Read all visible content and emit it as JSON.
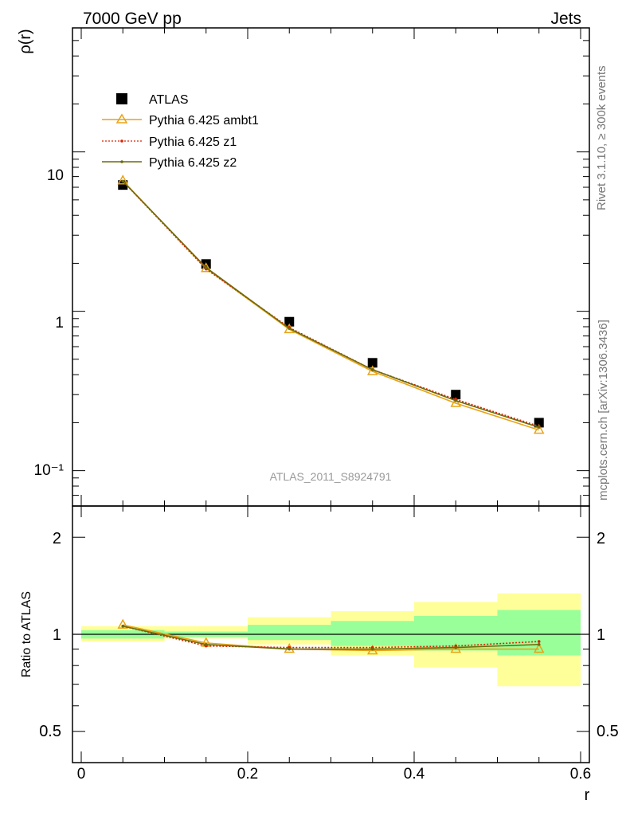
{
  "header": {
    "left_title": "7000 GeV pp",
    "right_title": "Jets"
  },
  "side_labels": {
    "rivet": "Rivet 3.1.10, ≥ 300k events",
    "source": "mcplots.cern.ch [arXiv:1306.3436]"
  },
  "watermark": "ATLAS_2011_S8924791",
  "chart_data": [
    {
      "type": "line",
      "panel": "main",
      "ylabel": "ρ(r)",
      "xlabel": "",
      "yscale": "log",
      "ylim": [
        0.06,
        60
      ],
      "xlim": [
        -0.012,
        0.6
      ],
      "ytick_labels": [
        "10⁻¹",
        "1",
        "10"
      ],
      "legend_position": "top-left",
      "x": [
        0.05,
        0.15,
        0.25,
        0.35,
        0.45,
        0.55
      ],
      "series": [
        {
          "name": "ATLAS",
          "color": "#000000",
          "marker": "square",
          "values": [
            6.2,
            1.98,
            0.86,
            0.475,
            0.3,
            0.2
          ]
        },
        {
          "name": "Pythia 6.425 ambt1",
          "color": "#e8a317",
          "marker": "triangle",
          "style": "solid",
          "values": [
            6.6,
            1.86,
            0.77,
            0.42,
            0.265,
            0.18
          ]
        },
        {
          "name": "Pythia 6.425 z1",
          "color": "#dd2200",
          "marker": "dot",
          "style": "dotted",
          "values": [
            6.55,
            1.84,
            0.79,
            0.43,
            0.28,
            0.19
          ]
        },
        {
          "name": "Pythia 6.425 z2",
          "color": "#6b6b0a",
          "marker": "dot",
          "style": "solid",
          "values": [
            6.55,
            1.88,
            0.78,
            0.43,
            0.275,
            0.187
          ]
        }
      ]
    },
    {
      "type": "line",
      "panel": "ratio",
      "ylabel": "Ratio to ATLAS",
      "xlabel": "r",
      "yscale": "log",
      "ylim": [
        0.4,
        2.5
      ],
      "xlim": [
        -0.012,
        0.6
      ],
      "ytick_labels": [
        "0.5",
        "1",
        "2"
      ],
      "xtick_labels": [
        "0",
        "0.2",
        "0.4",
        "0.6"
      ],
      "reference_line": 1,
      "bands": [
        {
          "x0": 0.0,
          "x1": 0.1,
          "green": [
            0.97,
            1.03
          ],
          "yellow": [
            0.95,
            1.06
          ]
        },
        {
          "x0": 0.1,
          "x1": 0.2,
          "green": [
            0.98,
            1.02
          ],
          "yellow": [
            0.97,
            1.06
          ]
        },
        {
          "x0": 0.2,
          "x1": 0.3,
          "green": [
            0.96,
            1.07
          ],
          "yellow": [
            0.93,
            1.13
          ]
        },
        {
          "x0": 0.3,
          "x1": 0.4,
          "green": [
            0.92,
            1.1
          ],
          "yellow": [
            0.86,
            1.18
          ]
        },
        {
          "x0": 0.4,
          "x1": 0.5,
          "green": [
            0.89,
            1.14
          ],
          "yellow": [
            0.79,
            1.26
          ]
        },
        {
          "x0": 0.5,
          "x1": 0.6,
          "green": [
            0.86,
            1.19
          ],
          "yellow": [
            0.69,
            1.34
          ]
        }
      ],
      "band_colors": {
        "green": "#99ff99",
        "yellow": "#ffff99"
      },
      "x": [
        0.05,
        0.15,
        0.25,
        0.35,
        0.45,
        0.55
      ],
      "series": [
        {
          "name": "Pythia 6.425 ambt1",
          "color": "#e8a317",
          "marker": "triangle",
          "style": "solid",
          "values": [
            1.07,
            0.94,
            0.9,
            0.89,
            0.9,
            0.9
          ]
        },
        {
          "name": "Pythia 6.425 z1",
          "color": "#dd2200",
          "marker": "dot",
          "style": "dotted",
          "values": [
            1.06,
            0.92,
            0.91,
            0.91,
            0.92,
            0.95
          ]
        },
        {
          "name": "Pythia 6.425 z2",
          "color": "#6b6b0a",
          "marker": "dot",
          "style": "solid",
          "values": [
            1.06,
            0.93,
            0.9,
            0.9,
            0.91,
            0.93
          ]
        }
      ]
    }
  ]
}
